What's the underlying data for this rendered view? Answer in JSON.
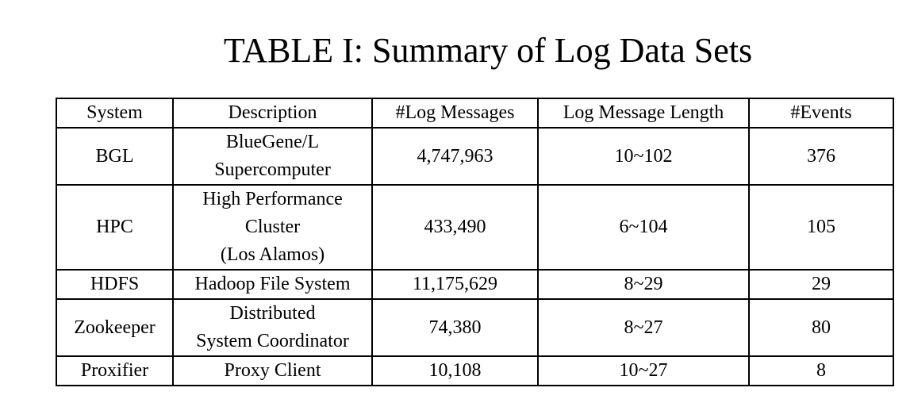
{
  "caption": "TABLE I: Summary of Log Data Sets",
  "columns": [
    "System",
    "Description",
    "#Log Messages",
    "Log Message Length",
    "#Events"
  ],
  "rows": [
    {
      "system": "BGL",
      "description": [
        "BlueGene/L",
        "Supercomputer"
      ],
      "log_messages": "4,747,963",
      "log_message_length": "10~102",
      "events": "376"
    },
    {
      "system": "HPC",
      "description": [
        "High Performance",
        "Cluster",
        "(Los Alamos)"
      ],
      "log_messages": "433,490",
      "log_message_length": "6~104",
      "events": "105"
    },
    {
      "system": "HDFS",
      "description": [
        "Hadoop File System"
      ],
      "log_messages": "11,175,629",
      "log_message_length": "8~29",
      "events": "29"
    },
    {
      "system": "Zookeeper",
      "description": [
        "Distributed",
        "System Coordinator"
      ],
      "log_messages": "74,380",
      "log_message_length": "8~27",
      "events": "80"
    },
    {
      "system": "Proxifier",
      "description": [
        "Proxy Client"
      ],
      "log_messages": "10,108",
      "log_message_length": "10~27",
      "events": "8"
    }
  ]
}
